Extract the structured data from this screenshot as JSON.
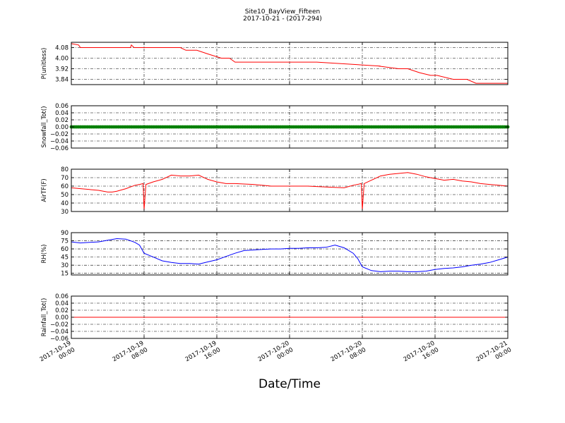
{
  "figure": {
    "title_line1": "Site10_BayView_Fifteen",
    "title_line2": "2017-10-21 - (2017-294)",
    "xlabel": "Date/Time"
  },
  "chart_data": {
    "type": "line",
    "x_ticks": [
      {
        "line1": "2017-10-19",
        "line2": "00:00"
      },
      {
        "line1": "2017-10-19",
        "line2": "08:00"
      },
      {
        "line1": "2017-10-19",
        "line2": "16:00"
      },
      {
        "line1": "2017-10-20",
        "line2": "00:00"
      },
      {
        "line1": "2017-10-20",
        "line2": "08:00"
      },
      {
        "line1": "2017-10-20",
        "line2": "16:00"
      },
      {
        "line1": "2017-10-21",
        "line2": "00:00"
      }
    ],
    "xrange_hours": [
      0,
      48
    ],
    "panels": [
      {
        "ylabel": "P(unitless)",
        "color": "#ff0000",
        "style": "line",
        "ylim": [
          3.8,
          4.12
        ],
        "yticks": [
          "4.08",
          "4.00",
          "3.92",
          "3.84"
        ],
        "ytick_values": [
          4.08,
          4.0,
          3.92,
          3.84
        ],
        "x": [
          0,
          0.8,
          1,
          3,
          5,
          6.5,
          6.6,
          6.9,
          7,
          9,
          12,
          12.6,
          13.8,
          15.1,
          16.5,
          17.4,
          18,
          24,
          27,
          34,
          33.8,
          36,
          37,
          38.3,
          39.5,
          40.2,
          42,
          43.5,
          44.5,
          46.5,
          48
        ],
        "y": [
          4.11,
          4.1,
          4.08,
          4.08,
          4.08,
          4.08,
          4.1,
          4.08,
          4.08,
          4.08,
          4.08,
          4.06,
          4.06,
          4.03,
          4.0,
          4.0,
          3.97,
          3.97,
          3.97,
          3.94,
          3.94,
          3.92,
          3.92,
          3.89,
          3.87,
          3.87,
          3.84,
          3.84,
          3.81,
          3.81,
          3.81
        ]
      },
      {
        "ylabel": "Snowfall_Tot()",
        "color": "#008000",
        "style": "dots",
        "ylim": [
          -0.06,
          0.06
        ],
        "yticks": [
          "0.06",
          "0.04",
          "0.02",
          "0.00",
          "−0.02",
          "−0.04",
          "−0.06"
        ],
        "ytick_values": [
          0.06,
          0.04,
          0.02,
          0.0,
          -0.02,
          -0.04,
          -0.06
        ],
        "constant": 0.0
      },
      {
        "ylabel": "AirTF(F)",
        "color": "#ff0000",
        "style": "line",
        "ylim": [
          30,
          80
        ],
        "yticks": [
          "80",
          "70",
          "60",
          "50",
          "40",
          "30"
        ],
        "ytick_values": [
          80,
          70,
          60,
          50,
          40,
          30
        ],
        "x": [
          0,
          1,
          2,
          3,
          4,
          4.5,
          5,
          6,
          6.5,
          7,
          7.5,
          7.9,
          8,
          8.2,
          9,
          10,
          11,
          12,
          13,
          14,
          15,
          16,
          17,
          18,
          20,
          22,
          24,
          26,
          28,
          30,
          31,
          31.9,
          32,
          32.2,
          33,
          34,
          35,
          36,
          37,
          38,
          39,
          40,
          41,
          42,
          43,
          44,
          45,
          46,
          47,
          48
        ],
        "y": [
          58,
          57,
          56,
          55,
          53,
          53,
          54,
          57,
          59,
          61,
          62,
          63,
          32,
          62,
          65,
          68,
          73,
          72,
          72,
          73,
          68,
          65,
          63,
          63,
          62,
          60,
          60,
          60,
          59,
          58,
          61,
          63,
          32,
          63,
          67,
          72,
          74,
          75,
          76,
          74,
          71,
          69,
          67,
          68,
          66,
          65,
          63,
          62,
          61,
          60
        ]
      },
      {
        "ylabel": "RH(%)",
        "color": "#0000ff",
        "style": "line",
        "ylim": [
          12,
          90
        ],
        "yticks": [
          "90",
          "75",
          "60",
          "45",
          "30",
          "15"
        ],
        "ytick_values": [
          90,
          75,
          60,
          45,
          30,
          15
        ],
        "x": [
          0,
          1,
          2,
          3,
          4,
          5,
          6,
          7,
          7.5,
          8,
          9,
          10,
          11,
          12,
          13,
          14,
          15,
          16,
          17,
          18,
          19,
          20,
          21,
          22,
          23,
          24,
          25,
          26,
          27,
          28,
          29,
          30,
          31,
          31.5,
          32,
          33,
          34,
          35,
          36,
          37,
          38,
          39,
          40,
          41,
          42,
          43,
          44,
          45,
          46,
          47,
          48
        ],
        "y": [
          73,
          71,
          72,
          73,
          76,
          79,
          78,
          72,
          67,
          52,
          45,
          38,
          35,
          33,
          33,
          32,
          36,
          40,
          46,
          52,
          57,
          58,
          59,
          60,
          60,
          61,
          61,
          62,
          62,
          63,
          67,
          62,
          52,
          42,
          27,
          20,
          18,
          19,
          19,
          18,
          18,
          19,
          22,
          24,
          25,
          27,
          30,
          32,
          35,
          40,
          45
        ]
      },
      {
        "ylabel": "Rainfall_Tot()",
        "color": "#ff0000",
        "style": "line",
        "ylim": [
          -0.06,
          0.06
        ],
        "yticks": [
          "0.06",
          "0.04",
          "0.02",
          "0.00",
          "−0.02",
          "−0.04",
          "−0.06"
        ],
        "ytick_values": [
          0.06,
          0.04,
          0.02,
          0.0,
          -0.02,
          -0.04,
          -0.06
        ],
        "constant": 0.0
      }
    ]
  }
}
